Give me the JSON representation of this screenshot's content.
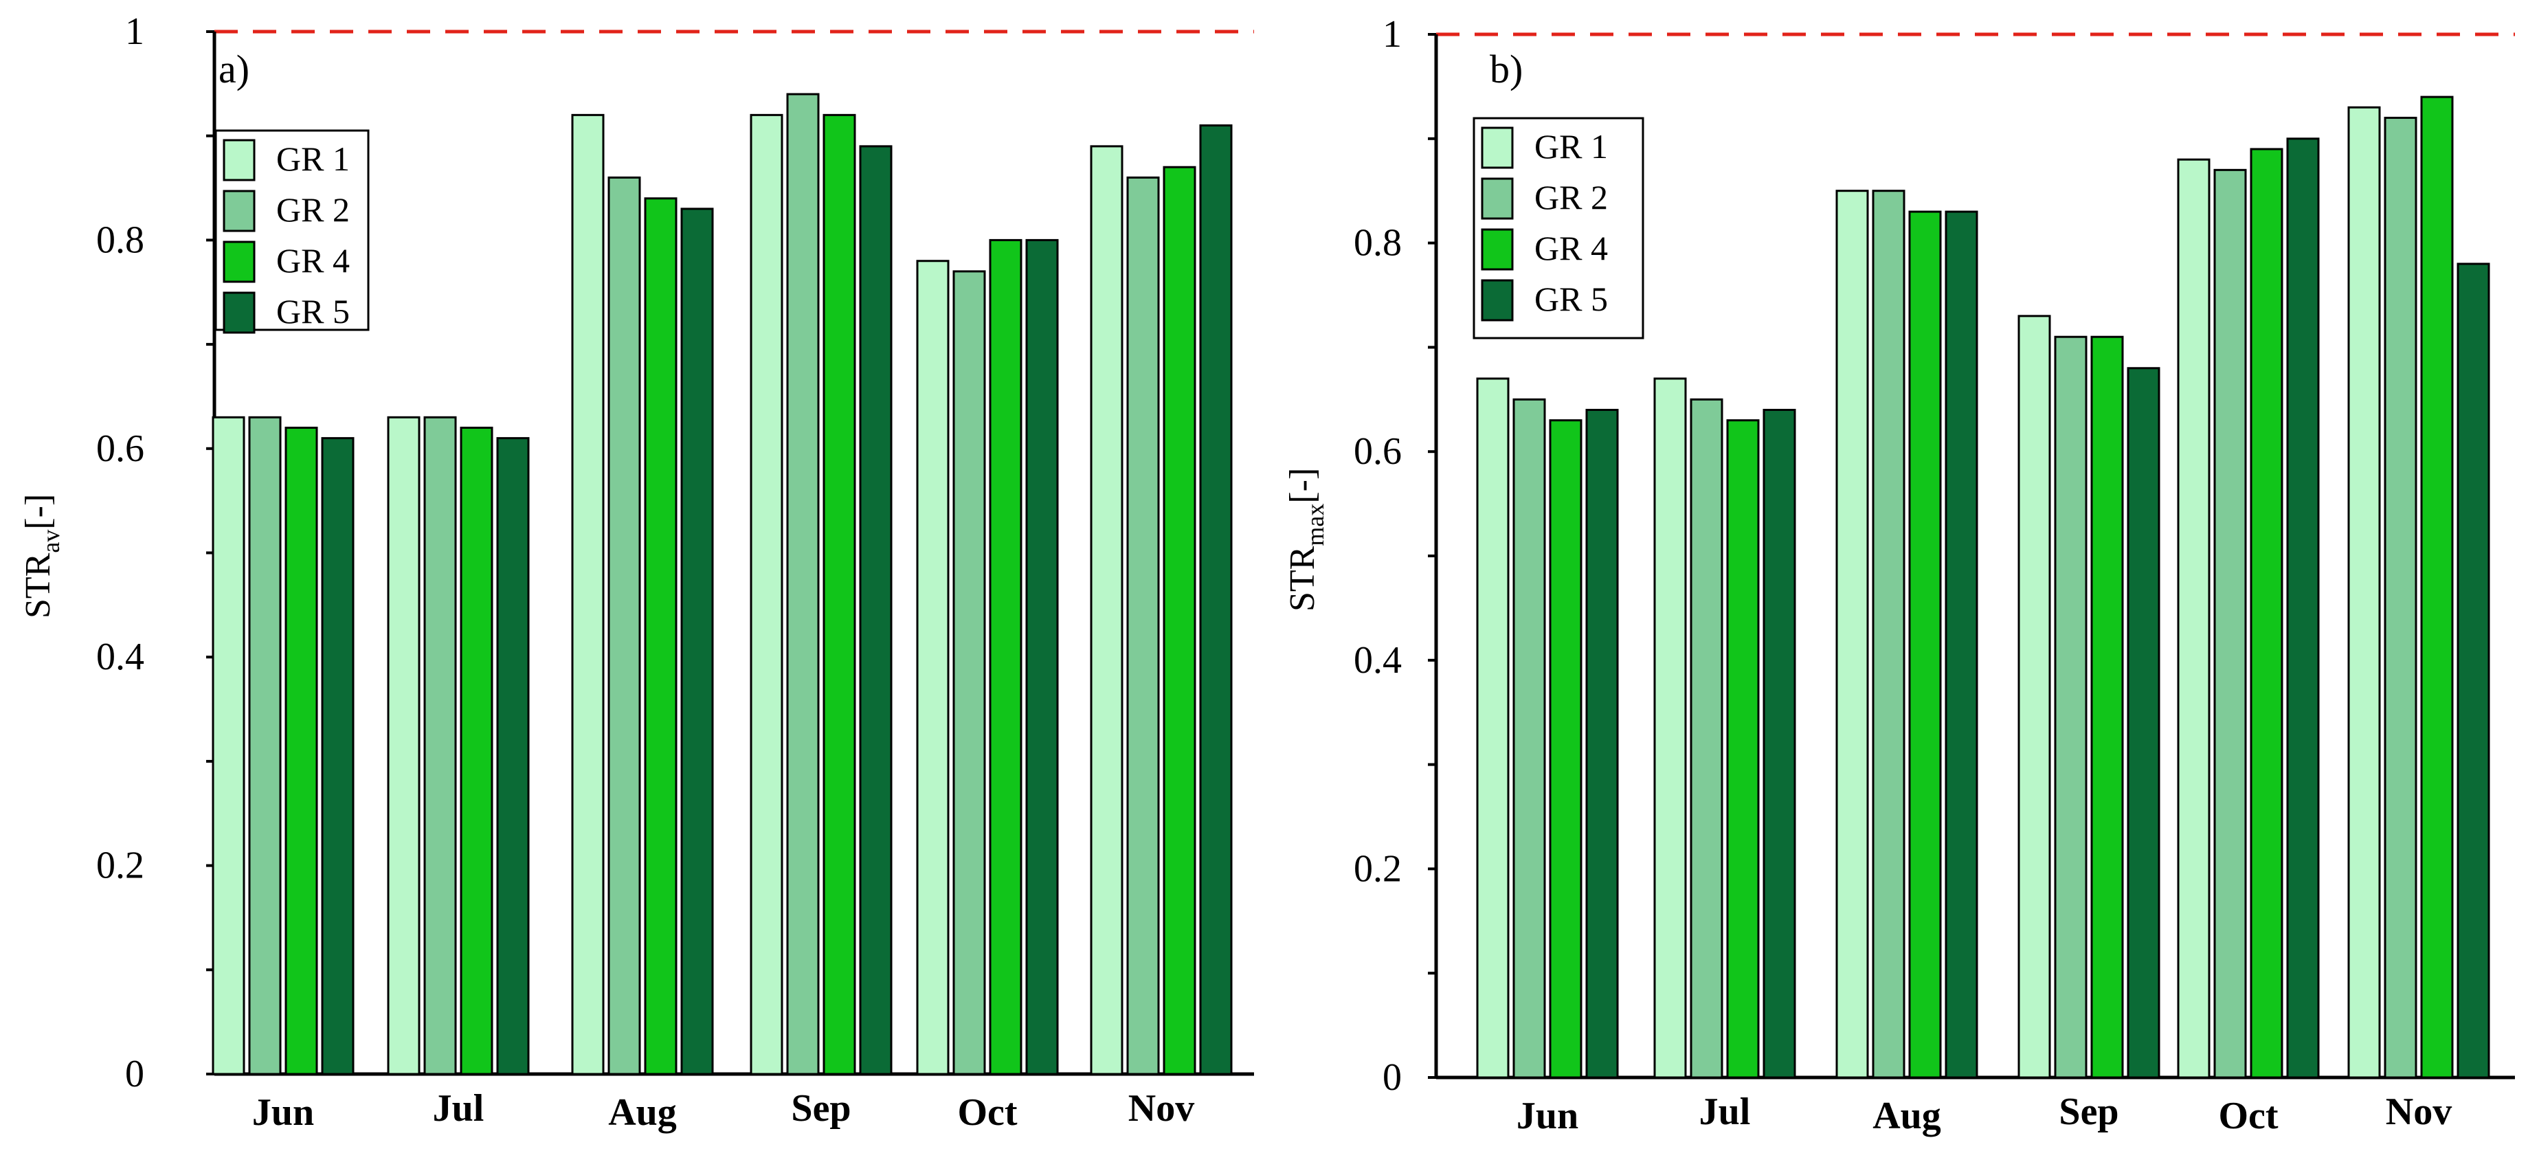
{
  "chart_data": [
    {
      "type": "bar",
      "panel_label": "a)",
      "title": "",
      "ylabel_main": "STR",
      "ylabel_sub": "av",
      "ylabel_suffix": "[-]",
      "xlabel": "",
      "ylim": [
        0,
        1
      ],
      "yticks": [
        "0",
        "0.2",
        "0.4",
        "0.6",
        "0.8",
        "1"
      ],
      "reference_line": 1,
      "categories": [
        "Jun",
        "Jul",
        "Aug",
        "Sep",
        "Oct",
        "Nov"
      ],
      "legend_position": "upper-left",
      "series": [
        {
          "name": "GR 1",
          "color": "#b9f7c9",
          "values": [
            0.63,
            0.63,
            0.92,
            0.92,
            0.78,
            0.89
          ]
        },
        {
          "name": "GR 2",
          "color": "#7fcb98",
          "values": [
            0.63,
            0.63,
            0.86,
            0.94,
            0.77,
            0.86
          ]
        },
        {
          "name": "GR 4",
          "color": "#11c51a",
          "values": [
            0.62,
            0.62,
            0.84,
            0.92,
            0.8,
            0.87
          ]
        },
        {
          "name": "GR 5",
          "color": "#0b6b36",
          "values": [
            0.61,
            0.61,
            0.83,
            0.89,
            0.8,
            0.91
          ]
        }
      ]
    },
    {
      "type": "bar",
      "panel_label": "b)",
      "title": "",
      "ylabel_main": "STR",
      "ylabel_sub": "max",
      "ylabel_suffix": "[-]",
      "xlabel": "",
      "ylim": [
        0,
        1
      ],
      "yticks": [
        "0",
        "0.2",
        "0.4",
        "0.6",
        "0.8",
        "1"
      ],
      "reference_line": 1,
      "categories": [
        "Jun",
        "Jul",
        "Aug",
        "Sep",
        "Oct",
        "Nov"
      ],
      "legend_position": "upper-left",
      "series": [
        {
          "name": "GR 1",
          "color": "#b9f7c9",
          "values": [
            0.67,
            0.67,
            0.85,
            0.73,
            0.88,
            0.93
          ]
        },
        {
          "name": "GR 2",
          "color": "#7fcb98",
          "values": [
            0.65,
            0.65,
            0.85,
            0.71,
            0.87,
            0.92
          ]
        },
        {
          "name": "GR 4",
          "color": "#11c51a",
          "values": [
            0.63,
            0.63,
            0.83,
            0.71,
            0.89,
            0.94
          ]
        },
        {
          "name": "GR 5",
          "color": "#0b6b36",
          "values": [
            0.64,
            0.64,
            0.83,
            0.68,
            0.9,
            0.78
          ]
        }
      ]
    }
  ]
}
